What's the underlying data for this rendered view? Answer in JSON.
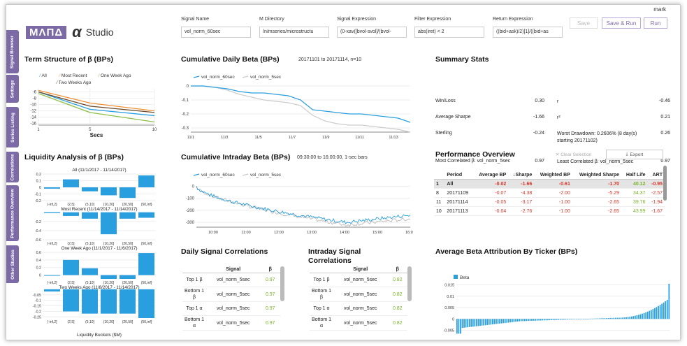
{
  "user": "mark",
  "logo": {
    "box": "ΜΛΠΔ",
    "alpha": "α",
    "studio": "Studio"
  },
  "side_tabs": [
    "Signal Browser",
    "Settings",
    "Series Listing",
    "Correlations",
    "Performance Overview",
    "Other Studies"
  ],
  "fields": [
    {
      "label": "Signal Name",
      "value": "vol_norm_60sec"
    },
    {
      "label": "M Directory",
      "value": "/n/mseries/microstructu"
    },
    {
      "label": "Signal Expression",
      "value": "(0-xav([bvol-svol]/(bvol-"
    },
    {
      "label": "Filter Expression",
      "value": "abs(iret) < 2"
    },
    {
      "label": "Return Expression",
      "value": "((bid+ask)/2)[1]/((bid+as"
    }
  ],
  "buttons": {
    "save": "Save",
    "save_run": "Save & Run",
    "run": "Run"
  },
  "term": {
    "title": "Term Structure of β (BPs)",
    "legend": [
      "All",
      "Most Recent",
      "One Week Ago",
      "Two Weeks Ago"
    ],
    "colors": [
      "#2a9fe0",
      "#f0923a",
      "#8ec04a",
      "#6b4a2a"
    ],
    "yticks": [
      "-6",
      "-8",
      "-10",
      "-12",
      "-14",
      "-16"
    ],
    "xticks": [
      "1",
      "5",
      "10"
    ],
    "xlabel": "Secs"
  },
  "liq": {
    "title": "Liquidity Analysis of β (BPs)",
    "xlabel": "Liquidity Buckets ($M)",
    "buckets": [
      "(-inf,2]",
      "(2,5]",
      "(5,10]",
      "(10,20]",
      "(20,50]",
      "(50,inf]"
    ],
    "panels": [
      {
        "title": "All (11/1/2017 - 11/14/2017)",
        "yticks": [
          "0.2",
          "0.1",
          "0",
          "-0.1",
          "-0.2"
        ],
        "values": [
          -0.02,
          0.12,
          -0.06,
          -0.12,
          -0.16,
          0.18
        ]
      },
      {
        "title": "Most Recent (11/14/2017 - 11/14/2017)",
        "yticks": [
          "-0.2",
          "-0.4",
          "-0.6"
        ],
        "values": [
          -0.02,
          -0.08,
          -0.14,
          -0.48,
          -0.14,
          -0.12
        ]
      },
      {
        "title": "One Week Ago (11/1/2017 - 11/6/2017)",
        "yticks": [
          "0.6",
          "0.4",
          "0.2",
          "0"
        ],
        "values": [
          0.0,
          0.4,
          0.18,
          -0.1,
          -0.1,
          0.58
        ]
      },
      {
        "title": "Two Weeks Ago (11/8/2017 - 11/14/2017)",
        "yticks": [
          "-0.05",
          "-0.1",
          "-0.15",
          "-0.2",
          "-0.25"
        ],
        "values": [
          -0.02,
          -0.2,
          -0.22,
          -0.22,
          -0.22,
          -0.26
        ]
      }
    ]
  },
  "daily": {
    "title": "Cumulative Daily Beta (BPs)",
    "subtitle": "20171101 to 20171114, n=10",
    "legend": [
      "vol_norm_60sec",
      "vol_norm_5sec"
    ],
    "yticks": [
      "0",
      "-0.1",
      "-0.2",
      "-0.3"
    ],
    "xticks": [
      "11/1",
      "11/3",
      "11/5",
      "11/7",
      "11/9",
      "11/11",
      "11/13"
    ],
    "s1": [
      0,
      0,
      -0.01,
      -0.02,
      -0.04,
      -0.05,
      -0.05,
      -0.06,
      -0.07,
      -0.1,
      -0.17,
      -0.18,
      -0.19,
      -0.2,
      -0.2,
      -0.21,
      -0.22,
      -0.23,
      -0.26
    ],
    "s2": [
      0,
      0,
      -0.01,
      -0.03,
      -0.06,
      -0.08,
      -0.1,
      -0.11,
      -0.12,
      -0.14,
      -0.21,
      -0.25,
      -0.27,
      -0.28,
      -0.28,
      -0.29,
      -0.3,
      -0.31,
      -0.33
    ]
  },
  "intra": {
    "title": "Cumulative Intraday Beta (BPs)",
    "subtitle": "09:30:00 to 16:00:00, 1-sec bars",
    "legend": [
      "vol_norm_60sec",
      "vol_norm_5sec"
    ],
    "yticks": [
      "0",
      "-100",
      "-200",
      "-300"
    ],
    "xticks": [
      "10:00",
      "11:00",
      "12:00",
      "13:00",
      "14:00",
      "15:00",
      "16:00"
    ]
  },
  "summary": {
    "title": "Summary Stats",
    "rows": [
      {
        "l1": "Win/Loss",
        "v1": "0.30",
        "l2": "r",
        "v2": "-0.46"
      },
      {
        "l1": "Average Sharpe",
        "v1": "-1.66",
        "l2": "r²",
        "v2": "0.21"
      },
      {
        "l1": "Sterling",
        "v1": "-0.24",
        "l2": "Worst Drawdown: 0.2606% (8 day(s) starting 20171102)",
        "v2": "0.26"
      },
      {
        "l1": "Most Correlated β: vol_norm_5sec",
        "v1": "0.97",
        "l2": "Least Correlated β: vol_norm_5sec",
        "v2": "0.97"
      }
    ]
  },
  "perf": {
    "title": "Performance Overview",
    "clear": "Clear Selection",
    "export": "Export",
    "cols": [
      "",
      "Period",
      "Average BP",
      "↓Sharpe",
      "Weighted BP",
      "Weighted Sharpe",
      "Half Life",
      "ART"
    ],
    "rows": [
      [
        "1",
        "All",
        "-0.02",
        "-1.66",
        "-0.61",
        "-1.70",
        "40.12",
        "-0.95"
      ],
      [
        "8",
        "20171109",
        "-0.07",
        "-4.38",
        "-2.00",
        "-5.29",
        "34.37",
        "-2.57"
      ],
      [
        "11",
        "20171114",
        "-0.05",
        "-3.17",
        "-1.00",
        "-2.65",
        "39.76",
        "-1.94"
      ],
      [
        "10",
        "20171113",
        "-0.04",
        "-2.76",
        "-1.00",
        "-2.65",
        "43.99",
        "-1.67"
      ]
    ]
  },
  "dcorr": {
    "title": "Daily Signal Correlations",
    "head": [
      "",
      "Signal",
      "β"
    ],
    "rows": [
      [
        "Top 1 β",
        "vol_norm_5sec",
        "0.97"
      ],
      [
        "Bottom 1 β",
        "vol_norm_5sec",
        "0.97"
      ],
      [
        "Top 1 α",
        "vol_norm_5sec",
        "0.97"
      ],
      [
        "Bottom 1 α",
        "vol_norm_5sec",
        "0.97"
      ]
    ]
  },
  "icorr": {
    "title": "Intraday Signal Correlations",
    "head": [
      "",
      "Signal",
      "β"
    ],
    "rows": [
      [
        "Top 1 β",
        "vol_norm_5sec",
        "0.82"
      ],
      [
        "Bottom 1 β",
        "vol_norm_5sec",
        "0.82"
      ],
      [
        "Top 1 α",
        "vol_norm_5sec",
        "0.82"
      ],
      [
        "Bottom 1 α",
        "vol_norm_5sec",
        "0.82"
      ]
    ]
  },
  "attr": {
    "title": "Average Beta Attribution By Ticker (BPs)",
    "legend": "Beta",
    "yticks": [
      "0.015",
      "0.01",
      "0.005",
      "0",
      "-0.005"
    ]
  },
  "chart_data": [
    {
      "type": "line",
      "title": "Term Structure of β (BPs)",
      "xlabel": "Secs",
      "x": [
        1,
        5,
        10
      ],
      "series": [
        {
          "name": "All",
          "values": [
            -6,
            -11.5,
            -13.5
          ]
        },
        {
          "name": "Most Recent",
          "values": [
            -5.5,
            -9.5,
            -12
          ]
        },
        {
          "name": "One Week Ago",
          "values": [
            -6.5,
            -12.5,
            -15.5
          ]
        },
        {
          "name": "Two Weeks Ago",
          "values": [
            -6,
            -10.5,
            -12.5
          ]
        }
      ]
    },
    {
      "type": "line",
      "title": "Cumulative Daily Beta (BPs)",
      "ylim": [
        -0.33,
        0
      ]
    },
    {
      "type": "bar",
      "title": "Average Beta Attribution By Ticker (BPs)",
      "series": [
        {
          "name": "Beta"
        }
      ],
      "ylim": [
        -0.007,
        0.017
      ]
    }
  ]
}
